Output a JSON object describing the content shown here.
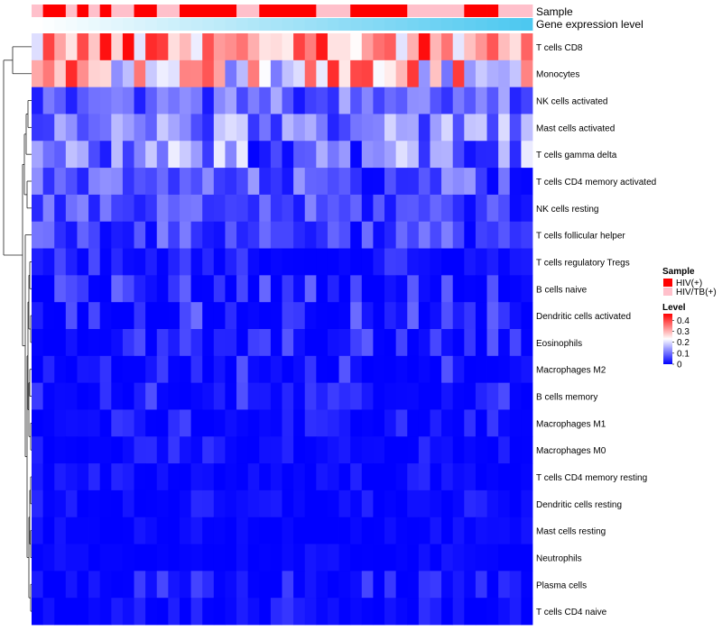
{
  "chart_data": {
    "type": "heatmap",
    "title": "",
    "annotation_tracks": [
      "Sample",
      "Gene expression level"
    ],
    "rows": [
      "T cells CD8",
      "Monocytes",
      "NK cells activated",
      "Mast cells activated",
      "T cells gamma delta",
      "T cells CD4 memory activated",
      "NK cells resting",
      "T cells follicular helper",
      "T cells regulatory  Tregs",
      "B cells naive",
      "Dendritic cells activated",
      "Eosinophils",
      "Macrophages M2",
      "B cells memory",
      "Macrophages M1",
      "Macrophages M0",
      "T cells CD4 memory resting",
      "Dendritic cells resting",
      "Mast cells resting",
      "Neutrophils",
      "Plasma cells",
      "T cells CD4 naive"
    ],
    "n_columns": 44,
    "sample_groups": [
      "HIV(+)",
      "HIV/TB(+)"
    ],
    "sample_codes": [
      1,
      0,
      0,
      1,
      0,
      1,
      0,
      1,
      1,
      0,
      0,
      1,
      1,
      0,
      0,
      0,
      0,
      0,
      1,
      1,
      0,
      0,
      0,
      0,
      0,
      1,
      1,
      1,
      0,
      0,
      0,
      0,
      0,
      1,
      1,
      1,
      1,
      1,
      0,
      0,
      0,
      1,
      1,
      1
    ],
    "expression_range": [
      0,
      1
    ],
    "row_ranges": [
      [
        0.2,
        0.46
      ],
      [
        0.1,
        0.44
      ],
      [
        0.02,
        0.16
      ],
      [
        0.03,
        0.2
      ],
      [
        0.0,
        0.22
      ],
      [
        0.0,
        0.14
      ],
      [
        0.0,
        0.12
      ],
      [
        0.0,
        0.12
      ],
      [
        0.0,
        0.07
      ],
      [
        0.0,
        0.11
      ],
      [
        0.0,
        0.1
      ],
      [
        0.0,
        0.09
      ],
      [
        0.0,
        0.09
      ],
      [
        0.0,
        0.08
      ],
      [
        0.0,
        0.06
      ],
      [
        0.0,
        0.05
      ],
      [
        0.0,
        0.04
      ],
      [
        0.0,
        0.04
      ],
      [
        0.0,
        0.02
      ],
      [
        0.0,
        0.02
      ],
      [
        0.0,
        0.07
      ],
      [
        0.0,
        0.05
      ]
    ],
    "legend": {
      "sample_title": "Sample",
      "sample_entries": [
        {
          "label": "HIV(+)",
          "color": "#ff0000"
        },
        {
          "label": "HIV/TB(+)",
          "color": "#ffc0cb"
        }
      ],
      "level_title": "Level",
      "level_ticks": [
        "0.4",
        "0.3",
        "0.2",
        "0.1",
        "0"
      ],
      "level_tick_values": [
        0.4,
        0.3,
        0.2,
        0.1,
        0
      ],
      "level_max": 0.46
    },
    "colors": {
      "low": "#0000ff",
      "mid": "#ffffff",
      "high": "#ff0000",
      "expr_low": "#ffffff",
      "expr_high": "#4dc8f0"
    }
  }
}
